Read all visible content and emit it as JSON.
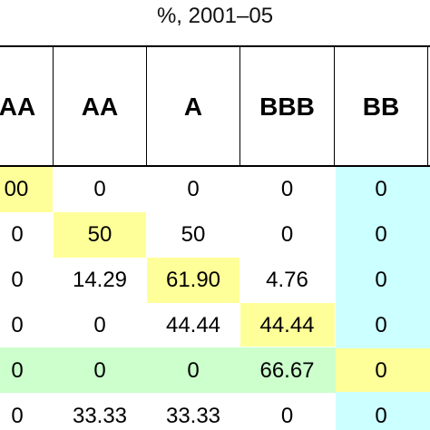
{
  "caption": "%, 2001–05",
  "colors": {
    "diagonal_yellow": "#ffff99",
    "cyan_column": "#ccffff",
    "green_row": "#ccffcc",
    "grid": "#000000"
  },
  "table": {
    "headers": [
      "AA",
      "AA",
      "A",
      "BBB",
      "BB"
    ],
    "rows": [
      [
        "00",
        "0",
        "0",
        "0",
        "0"
      ],
      [
        "0",
        "50",
        "50",
        "0",
        "0"
      ],
      [
        "0",
        "14.29",
        "61.90",
        "4.76",
        "0"
      ],
      [
        "0",
        "0",
        "44.44",
        "44.44",
        "0"
      ],
      [
        "0",
        "0",
        "0",
        "66.67",
        "0"
      ],
      [
        "0",
        "33.33",
        "33.33",
        "0",
        "0"
      ]
    ]
  }
}
